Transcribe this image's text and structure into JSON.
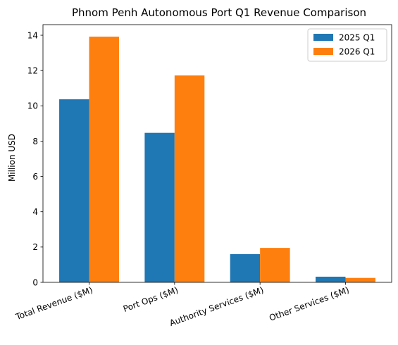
{
  "chart_data": {
    "type": "bar",
    "title": "Phnom Penh Autonomous Port Q1 Revenue Comparison",
    "xlabel": "",
    "ylabel": "Million USD",
    "ylim": [
      0,
      14.6
    ],
    "yticks": [
      0,
      2,
      4,
      6,
      8,
      10,
      12,
      14
    ],
    "grid": false,
    "legend_position": "top-right",
    "categories": [
      "Total Revenue ($M)",
      "Port Ops ($M)",
      "Authority Services ($M)",
      "Other Services ($M)"
    ],
    "series": [
      {
        "name": "2025 Q1",
        "color": "#1f77b4",
        "values": [
          10.37,
          8.47,
          1.6,
          0.32
        ]
      },
      {
        "name": "2026 Q1",
        "color": "#ff7f0e",
        "values": [
          13.92,
          11.72,
          1.95,
          0.25
        ]
      }
    ]
  }
}
